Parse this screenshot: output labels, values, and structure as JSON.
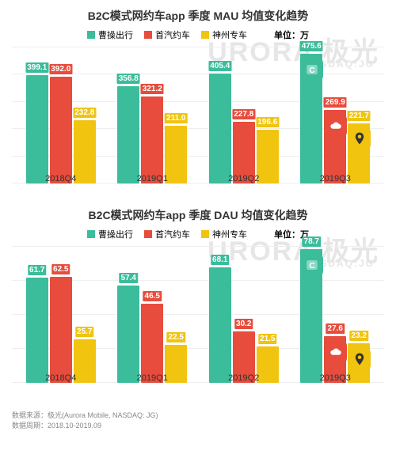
{
  "colors": {
    "series1": "#3bbc9b",
    "series2": "#e74c3c",
    "series3": "#f1c40f",
    "label_text": "#ffffff",
    "grid": "#eeeeee",
    "title": "#333333",
    "footer": "#999999",
    "wm": "#e6e6e6"
  },
  "legend": {
    "s1": "曹操出行",
    "s2": "首汽约车",
    "s3": "神州专车",
    "unit": "单位：万"
  },
  "watermark": {
    "big": "URORA 极光",
    "small": "NASDAQ:JG"
  },
  "chart1": {
    "title": "B2C模式网约车app 季度 MAU 均值变化趋势",
    "title_fontsize": 14,
    "type": "bar",
    "categories": [
      "2018Q4",
      "2019Q1",
      "2019Q2",
      "2019Q3"
    ],
    "ylim": [
      0,
      500
    ],
    "grid_step": 100,
    "series": [
      {
        "name": "曹操出行",
        "color": "#3bbc9b",
        "values": [
          399.1,
          356.8,
          405.4,
          475.6
        ]
      },
      {
        "name": "首汽约车",
        "color": "#e74c3c",
        "values": [
          392.0,
          321.2,
          227.8,
          269.9
        ]
      },
      {
        "name": "神州专车",
        "color": "#f1c40f",
        "values": [
          232.8,
          211.0,
          196.6,
          221.7
        ]
      }
    ]
  },
  "chart2": {
    "title": "B2C模式网约车app 季度 DAU 均值变化趋势",
    "title_fontsize": 14,
    "type": "bar",
    "categories": [
      "2018Q4",
      "2019Q1",
      "2019Q2",
      "2019Q3"
    ],
    "ylim": [
      0,
      80
    ],
    "grid_step": 20,
    "series": [
      {
        "name": "曹操出行",
        "color": "#3bbc9b",
        "values": [
          61.7,
          57.4,
          68.1,
          78.7
        ]
      },
      {
        "name": "首汽约车",
        "color": "#e74c3c",
        "values": [
          62.5,
          46.5,
          30.2,
          27.6
        ]
      },
      {
        "name": "神州专车",
        "color": "#f1c40f",
        "values": [
          25.7,
          22.5,
          21.5,
          23.2
        ]
      }
    ]
  },
  "footer": {
    "source": "数据来源：极光(Aurora Mobile, NASDAQ: JG)",
    "period": "数据周期：2018.10-2019.09"
  },
  "logos": [
    {
      "bg": "#3bbc9b",
      "icon": "caoCao"
    },
    {
      "bg": "#e74c3c",
      "icon": "cloud"
    },
    {
      "bg": "#f1c40f",
      "icon": "pin"
    }
  ]
}
